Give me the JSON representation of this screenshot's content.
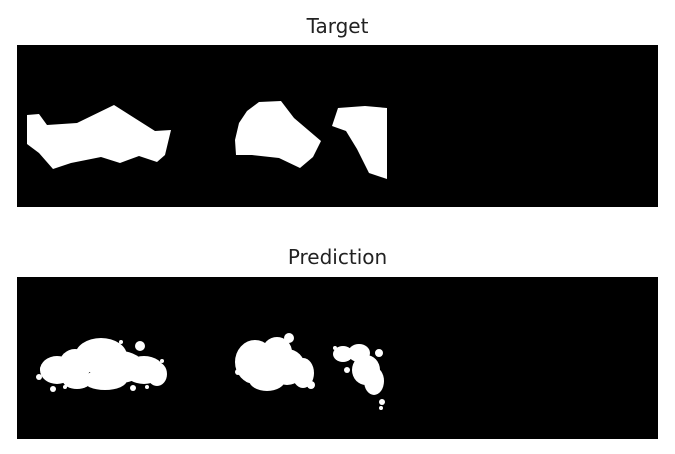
{
  "panels": {
    "target": {
      "title": "Target",
      "background_color": "#000000",
      "foreground_color": "#ffffff"
    },
    "prediction": {
      "title": "Prediction",
      "background_color": "#000000",
      "foreground_color": "#ffffff"
    }
  }
}
